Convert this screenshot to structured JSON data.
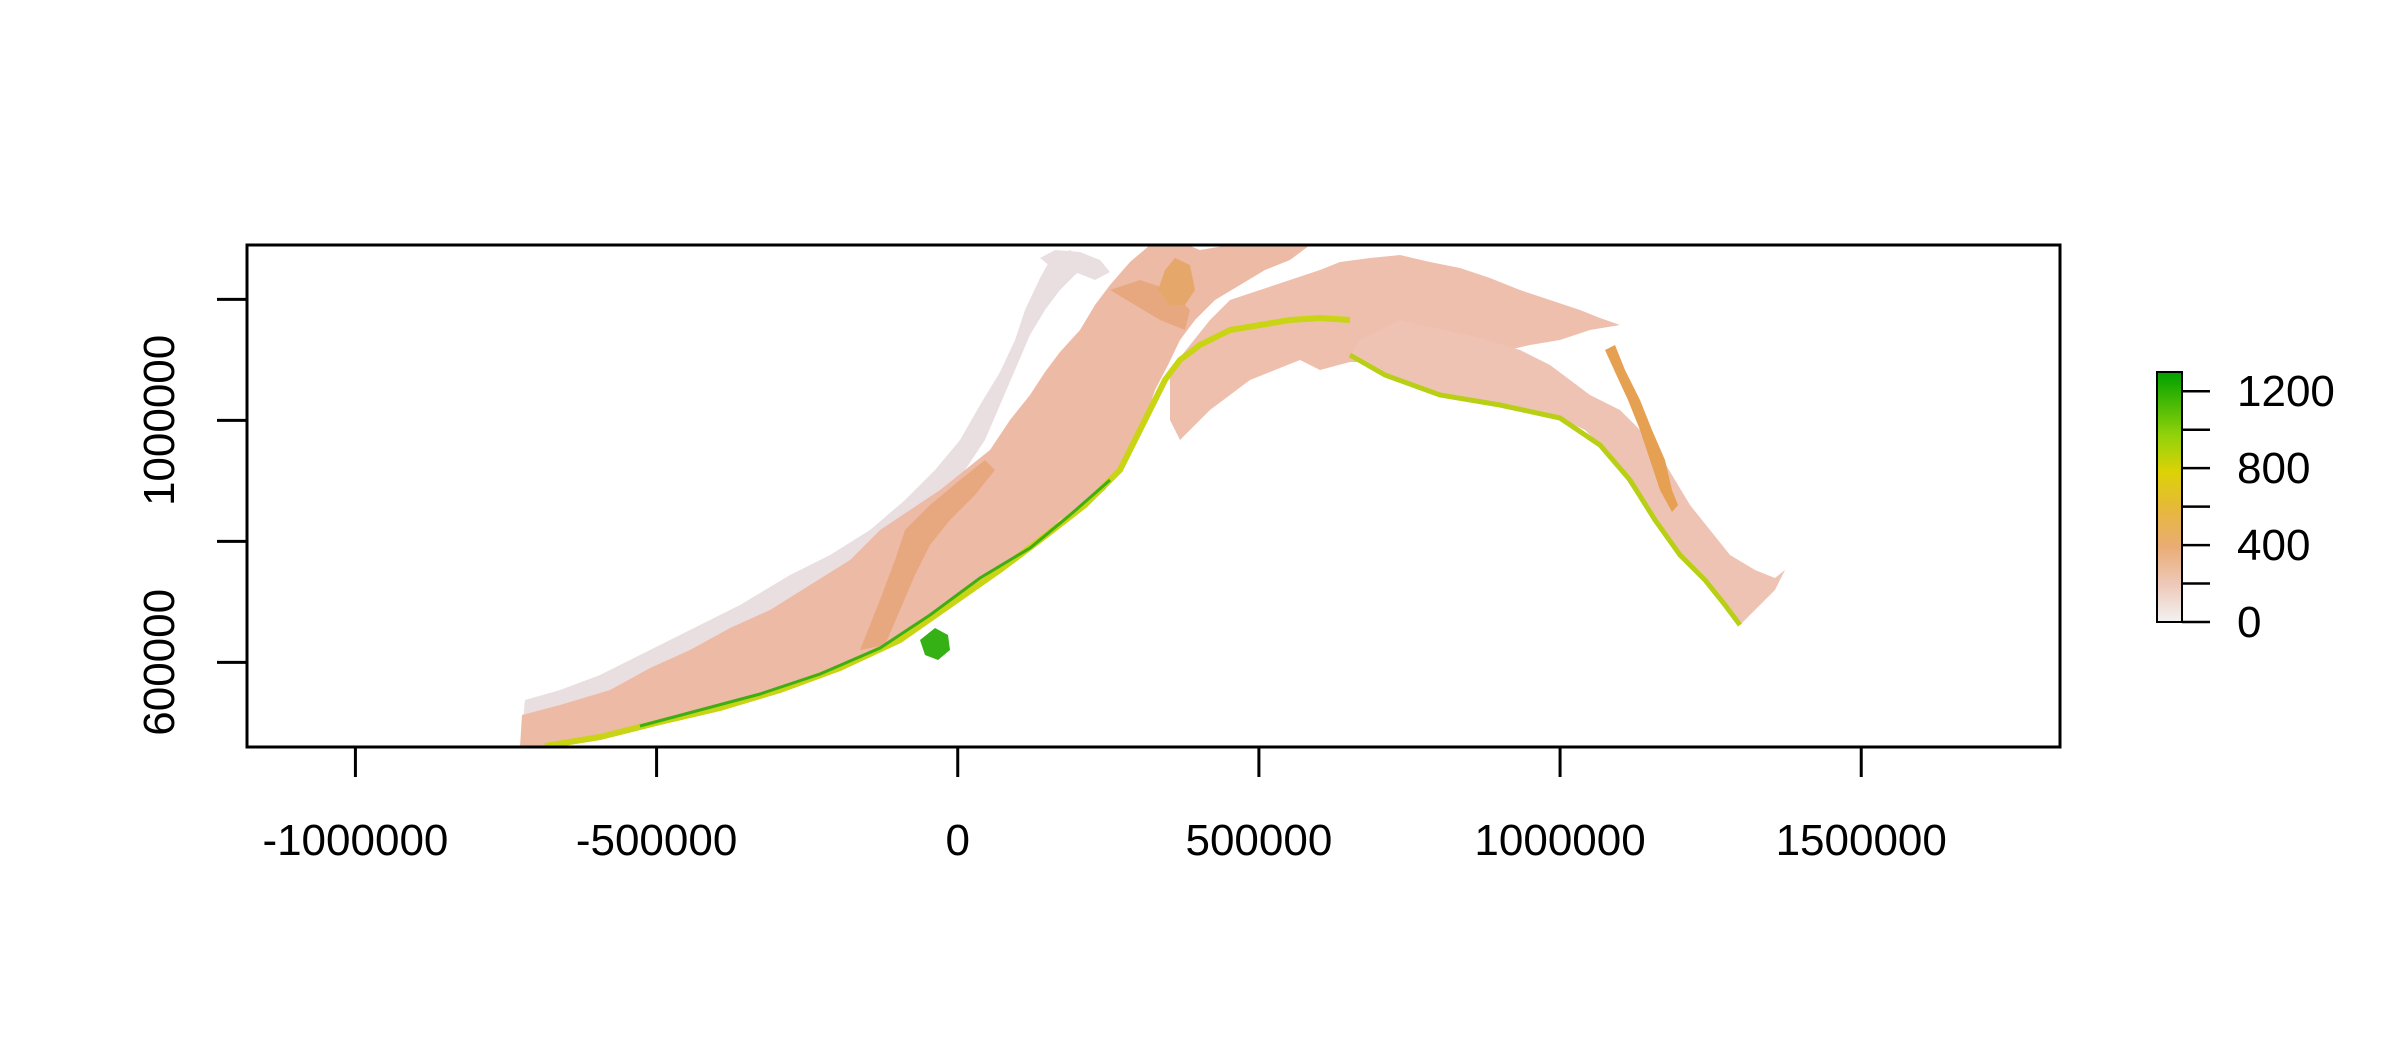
{
  "map": {
    "x_axis": {
      "ticks": [
        {
          "value": -1000000,
          "label": "-1000000"
        },
        {
          "value": -500000,
          "label": "-500000"
        },
        {
          "value": 0,
          "label": "0"
        },
        {
          "value": 500000,
          "label": "500000"
        },
        {
          "value": 1000000,
          "label": "1000000"
        },
        {
          "value": 1500000,
          "label": "1500000"
        }
      ],
      "range": [
        -1180000,
        1830000
      ]
    },
    "y_axis": {
      "ticks": [
        {
          "value": 600000,
          "label": "600000"
        },
        {
          "value": 800000,
          "label": "800000",
          "labeled": false
        },
        {
          "value": 1000000,
          "label": "1000000"
        },
        {
          "value": 1200000,
          "label": "1200000",
          "labeled": false
        }
      ],
      "range": [
        460000,
        1290000
      ]
    },
    "legend": {
      "placement": "right",
      "min": 0,
      "max": 1300,
      "ticks": [
        {
          "value": 0,
          "label": "0"
        },
        {
          "value": 200,
          "label": ""
        },
        {
          "value": 400,
          "label": "400"
        },
        {
          "value": 600,
          "label": ""
        },
        {
          "value": 800,
          "label": "800"
        },
        {
          "value": 1000,
          "label": ""
        },
        {
          "value": 1200,
          "label": "1200"
        }
      ],
      "colors": [
        "#f2f2f2",
        "#eec9b9",
        "#eaac75",
        "#e6b83b",
        "#dcd206",
        "#8fd20a",
        "#22aa00",
        "#00a600"
      ]
    },
    "colors": {
      "light": "#eadfe0",
      "salmon": "#edb9a4",
      "orange": "#e8a06a",
      "yellow": "#d8d00a",
      "green": "#5ac41a",
      "dark_green": "#1e9e10"
    }
  }
}
